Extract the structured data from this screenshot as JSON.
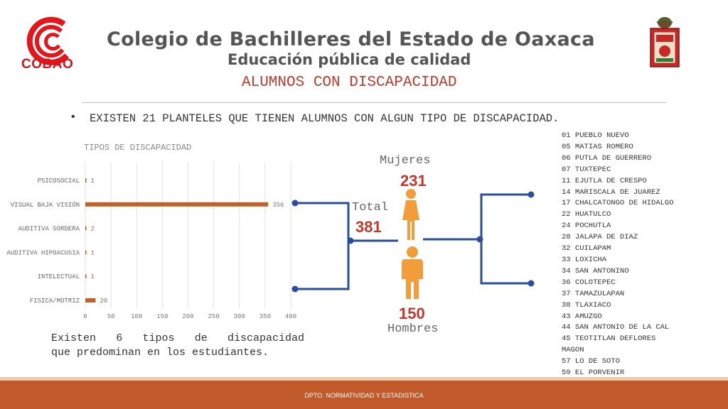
{
  "header": {
    "logo_text": "COBAO",
    "title": "Colegio de Bachilleres del Estado de Oaxaca",
    "tagline": "Educación pública de calidad",
    "section": "ALUMNOS CON DISCAPACIDAD"
  },
  "headline": "EXISTEN 21 PLANTELES QUE TIENEN ALUMNOS CON ALGUN TIPO DE DISCAPACIDAD.",
  "chart_data": {
    "type": "bar",
    "orientation": "horizontal",
    "title": "TIPOS DE DISCAPACIDAD",
    "categories": [
      "PSICOSOCIAL",
      "VISUAL BAJA VISIÓN",
      "AUDITIVA SORDERA",
      "AUDITIVA HIPOACUSIA",
      "INTELECTUAL",
      "FISICA/MOTRIZ"
    ],
    "values": [
      1,
      356,
      2,
      1,
      1,
      20
    ],
    "xlim": [
      0,
      400
    ],
    "xticks": [
      0,
      50,
      100,
      150,
      200,
      250,
      300,
      350,
      400
    ],
    "grid": true,
    "bar_color": "#c0602a"
  },
  "note": {
    "line1": "Existen 6 tipos de discapacidad",
    "line2": "que predominan en los estudiantes."
  },
  "stats": {
    "women_label": "Mujeres",
    "women_count": "231",
    "total_label": "Total",
    "total_count": "381",
    "men_label": "Hombres",
    "men_count": "150"
  },
  "campuses": [
    "01 PUEBLO NUEVO",
    "05 MATIAS ROMERO",
    "06 PUTLA DE GUERRERO",
    "07 TUXTEPEC",
    "11 EJUTLA DE CRESPO",
    "14 MARISCALA DE JUAREZ",
    "17 CHALCATONGO DE HIDALGO",
    "22 HUATULCO",
    "24 POCHUTLA",
    "28 JALAPA DE DIAZ",
    "32 CUILAPAM",
    "33 LOXICHA",
    "34 SAN ANTONINO",
    "36 COLOTEPEC",
    "37 TAMAZULAPAN",
    "38 TLAXIACO",
    "43 AMUZGO",
    "44 SAN ANTONIO DE LA CAL",
    "45 TEOTITLAN DEFLORES",
    "MAGON",
    "57 LO DE SOTO",
    "59 EL PORVENIR"
  ],
  "footer": "DPTO. NORMATIVIDAD Y ESTADISTICA",
  "colors": {
    "accent_red": "#c0392b",
    "connector_blue": "#2a4d9c",
    "person_orange": "#f39c3a",
    "footer": "#c05a2a"
  }
}
